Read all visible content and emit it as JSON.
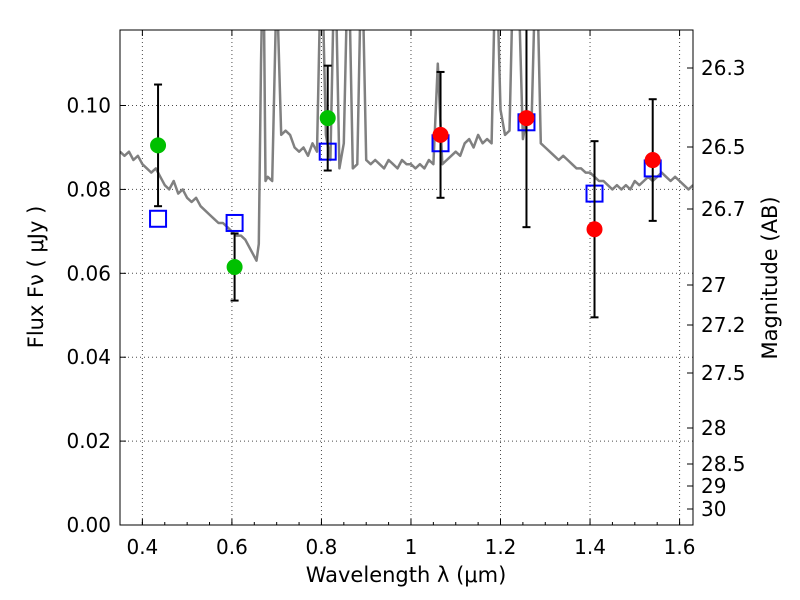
{
  "chart_data": {
    "type": "scatter",
    "xlabel": "Wavelength  λ (μm)",
    "ylabel": "Flux  Fν  ( μJy )",
    "y2label": "Magnitude (AB)",
    "xlim": [
      0.35,
      1.63
    ],
    "ylim": [
      0.0,
      0.118
    ],
    "grid": true,
    "x_ticks": [
      0.4,
      0.6,
      0.8,
      1.0,
      1.2,
      1.4,
      1.6
    ],
    "x_tick_labels": [
      "0.4",
      "0.6",
      "0.8",
      "1",
      "1.2",
      "1.4",
      "1.6"
    ],
    "y_ticks": [
      0.0,
      0.02,
      0.04,
      0.06,
      0.08,
      0.1
    ],
    "y_tick_labels": [
      "0.00",
      "0.02",
      "0.04",
      "0.06",
      "0.08",
      "0.10"
    ],
    "y2_tick_labels": [
      "26.3",
      "26.5",
      "26.7",
      "27",
      "27.2",
      "27.5",
      "28",
      "28.5",
      "29",
      "30"
    ],
    "colors": {
      "model_sed": "#808080",
      "model_photometry": "#0000ff",
      "green_points": "#00c000",
      "red_points": "#ff0000",
      "error_bars": "#000000"
    },
    "series": [
      {
        "kind": "line",
        "x": [
          0.35,
          0.36,
          0.37,
          0.38,
          0.39,
          0.4,
          0.41,
          0.42,
          0.43,
          0.44,
          0.45,
          0.46,
          0.47,
          0.48,
          0.49,
          0.5,
          0.51,
          0.52,
          0.53,
          0.54,
          0.55,
          0.56,
          0.57,
          0.58,
          0.59,
          0.6,
          0.61,
          0.62,
          0.63,
          0.64,
          0.65,
          0.655,
          0.66,
          0.665,
          0.67,
          0.675,
          0.68,
          0.69,
          0.7,
          0.71,
          0.72,
          0.73,
          0.74,
          0.75,
          0.76,
          0.77,
          0.78,
          0.79,
          0.8,
          0.81,
          0.82,
          0.83,
          0.84,
          0.85,
          0.86,
          0.87,
          0.88,
          0.89,
          0.9,
          0.91,
          0.92,
          0.93,
          0.94,
          0.95,
          0.96,
          0.97,
          0.98,
          0.99,
          1.0,
          1.01,
          1.02,
          1.03,
          1.04,
          1.05,
          1.06,
          1.07,
          1.08,
          1.09,
          1.1,
          1.11,
          1.12,
          1.13,
          1.14,
          1.15,
          1.16,
          1.17,
          1.18,
          1.19,
          1.2,
          1.21,
          1.22,
          1.23,
          1.24,
          1.25,
          1.26,
          1.27,
          1.28,
          1.29,
          1.3,
          1.31,
          1.32,
          1.33,
          1.34,
          1.35,
          1.36,
          1.37,
          1.38,
          1.39,
          1.4,
          1.41,
          1.42,
          1.43,
          1.44,
          1.45,
          1.46,
          1.47,
          1.48,
          1.49,
          1.5,
          1.51,
          1.52,
          1.53,
          1.54,
          1.55,
          1.56,
          1.57,
          1.58,
          1.59,
          1.6,
          1.61,
          1.62,
          1.63
        ],
        "y": [
          0.089,
          0.088,
          0.089,
          0.087,
          0.088,
          0.086,
          0.085,
          0.084,
          0.085,
          0.083,
          0.081,
          0.08,
          0.082,
          0.079,
          0.08,
          0.078,
          0.077,
          0.078,
          0.076,
          0.075,
          0.074,
          0.073,
          0.072,
          0.072,
          0.071,
          0.07,
          0.069,
          0.069,
          0.068,
          0.066,
          0.064,
          0.063,
          0.067,
          0.11,
          0.14,
          0.082,
          0.083,
          0.082,
          0.13,
          0.093,
          0.094,
          0.093,
          0.09,
          0.089,
          0.09,
          0.088,
          0.091,
          0.089,
          0.14,
          0.093,
          0.087,
          0.14,
          0.085,
          0.091,
          0.14,
          0.085,
          0.086,
          0.14,
          0.087,
          0.086,
          0.087,
          0.086,
          0.085,
          0.087,
          0.086,
          0.085,
          0.087,
          0.086,
          0.086,
          0.085,
          0.086,
          0.085,
          0.087,
          0.086,
          0.11,
          0.086,
          0.087,
          0.088,
          0.089,
          0.088,
          0.091,
          0.092,
          0.09,
          0.093,
          0.091,
          0.092,
          0.091,
          0.14,
          0.099,
          0.093,
          0.094,
          0.14,
          0.13,
          0.092,
          0.098,
          0.098,
          0.14,
          0.091,
          0.09,
          0.089,
          0.088,
          0.087,
          0.088,
          0.087,
          0.086,
          0.085,
          0.085,
          0.084,
          0.084,
          0.083,
          0.082,
          0.082,
          0.081,
          0.08,
          0.081,
          0.08,
          0.081,
          0.08,
          0.082,
          0.081,
          0.082,
          0.083,
          0.082,
          0.083,
          0.084,
          0.083,
          0.082,
          0.083,
          0.082,
          0.081,
          0.08,
          0.081
        ]
      },
      {
        "kind": "squares",
        "x": [
          0.435,
          0.606,
          0.814,
          1.066,
          1.258,
          1.41,
          1.54
        ],
        "y": [
          0.073,
          0.072,
          0.089,
          0.091,
          0.096,
          0.079,
          0.085
        ]
      },
      {
        "kind": "circles-green",
        "x": [
          0.435,
          0.606,
          0.814
        ],
        "y": [
          0.0905,
          0.0615,
          0.097
        ],
        "err": [
          0.0145,
          0.008,
          0.0125
        ]
      },
      {
        "kind": "circles-red",
        "x": [
          1.066,
          1.258,
          1.41,
          1.54
        ],
        "y": [
          0.093,
          0.097,
          0.0705,
          0.087
        ],
        "err": [
          0.015,
          0.026,
          0.021,
          0.0145
        ]
      }
    ]
  }
}
